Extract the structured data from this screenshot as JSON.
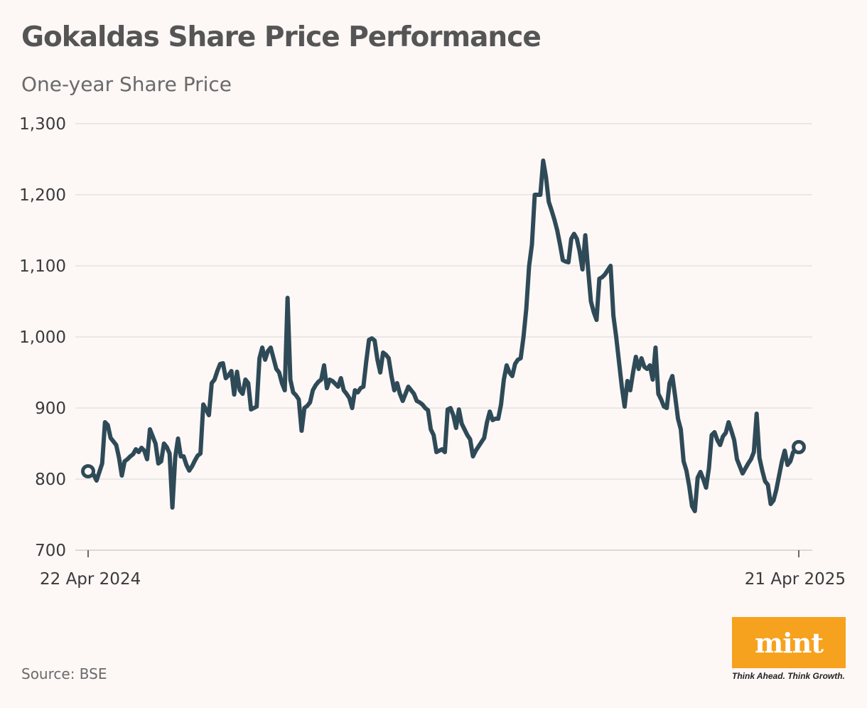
{
  "header": {
    "title": "Gokaldas Share Price Performance",
    "subtitle": "One-year Share Price"
  },
  "footer": {
    "source": "Source: BSE"
  },
  "logo": {
    "word": "mint",
    "tagline": "Think Ahead. Think Growth.",
    "color": "#f6a21e"
  },
  "colors": {
    "line": "#2f4a57",
    "grid": "#dedede",
    "background": "#fdf7f6"
  },
  "chart_data": {
    "type": "line",
    "title": "Gokaldas Share Price Performance",
    "subtitle": "One-year Share Price",
    "xlabel": "",
    "ylabel": "",
    "ylim": [
      700,
      1300
    ],
    "yticks": [
      700,
      800,
      900,
      1000,
      1100,
      1200,
      1300
    ],
    "ytick_labels": [
      "700",
      "800",
      "900",
      "1,000",
      "1,100",
      "1,200",
      "1,300"
    ],
    "x_tick_labels": [
      "22 Apr 2024",
      "21 Apr 2025"
    ],
    "grid": true,
    "legend": "none",
    "series": [
      {
        "name": "Gokaldas Share Price",
        "values": [
          811,
          808,
          806,
          798,
          810,
          822,
          880,
          876,
          858,
          853,
          848,
          830,
          805,
          825,
          828,
          832,
          835,
          842,
          838,
          844,
          840,
          828,
          870,
          860,
          850,
          822,
          825,
          850,
          845,
          836,
          760,
          830,
          857,
          832,
          832,
          820,
          812,
          818,
          826,
          833,
          836,
          905,
          898,
          890,
          935,
          940,
          952,
          962,
          963,
          942,
          946,
          952,
          919,
          951,
          925,
          920,
          940,
          935,
          898,
          900,
          902,
          970,
          985,
          968,
          980,
          985,
          970,
          955,
          950,
          935,
          925,
          1055,
          940,
          922,
          918,
          912,
          868,
          900,
          903,
          908,
          925,
          932,
          937,
          940,
          960,
          928,
          940,
          938,
          934,
          930,
          942,
          925,
          920,
          914,
          900,
          925,
          922,
          928,
          930,
          965,
          996,
          998,
          995,
          968,
          950,
          978,
          975,
          970,
          945,
          925,
          935,
          920,
          910,
          920,
          930,
          925,
          920,
          910,
          908,
          905,
          900,
          897,
          870,
          862,
          838,
          840,
          842,
          838,
          898,
          900,
          890,
          872,
          898,
          878,
          870,
          862,
          856,
          832,
          840,
          846,
          852,
          858,
          880,
          895,
          883,
          885,
          885,
          905,
          940,
          960,
          950,
          945,
          962,
          968,
          970,
          1000,
          1040,
          1100,
          1130,
          1200,
          1200,
          1200,
          1248,
          1225,
          1190,
          1178,
          1165,
          1150,
          1130,
          1108,
          1106,
          1105,
          1138,
          1145,
          1138,
          1120,
          1095,
          1143,
          1095,
          1050,
          1035,
          1024,
          1082,
          1084,
          1088,
          1094,
          1100,
          1030,
          1000,
          965,
          930,
          902,
          938,
          925,
          950,
          972,
          955,
          970,
          958,
          955,
          960,
          940,
          985,
          920,
          912,
          902,
          900,
          935,
          945,
          916,
          885,
          870,
          825,
          812,
          790,
          762,
          755,
          802,
          810,
          800,
          788,
          815,
          862,
          866,
          855,
          848,
          860,
          865,
          880,
          868,
          855,
          828,
          818,
          808,
          815,
          822,
          828,
          838,
          892,
          830,
          812,
          797,
          792,
          765,
          770,
          785,
          805,
          825,
          840,
          820,
          825,
          838,
          840,
          845
        ]
      }
    ]
  }
}
